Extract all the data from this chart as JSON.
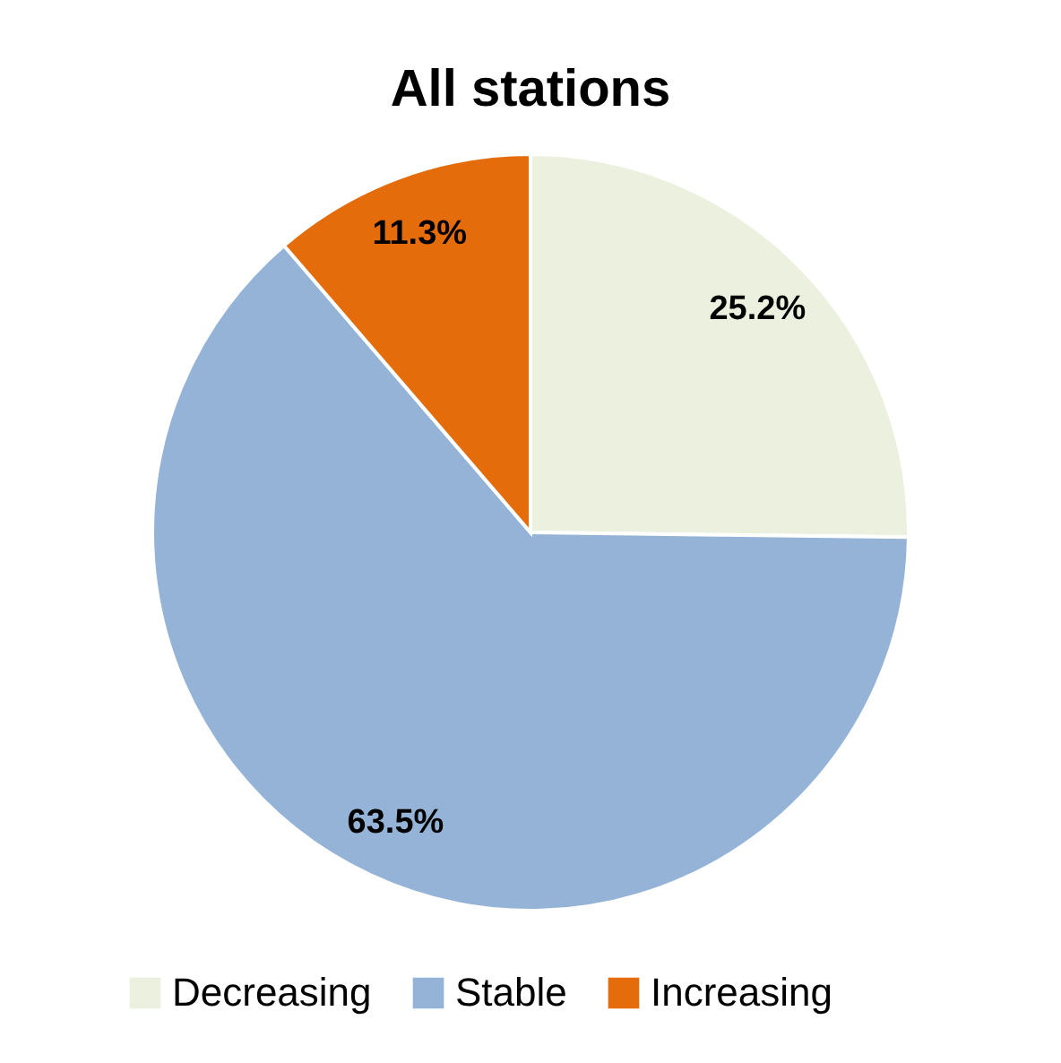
{
  "chart_data": {
    "type": "pie",
    "title": "All stations",
    "categories": [
      "Decreasing",
      "Stable",
      "Increasing"
    ],
    "values": [
      25.2,
      63.5,
      11.3
    ],
    "colors": [
      "#ebf1de",
      "#95b3d7",
      "#e46c0a"
    ],
    "value_labels": [
      "25.2%",
      "63.5%",
      "11.3%"
    ],
    "legend": "bottom"
  }
}
